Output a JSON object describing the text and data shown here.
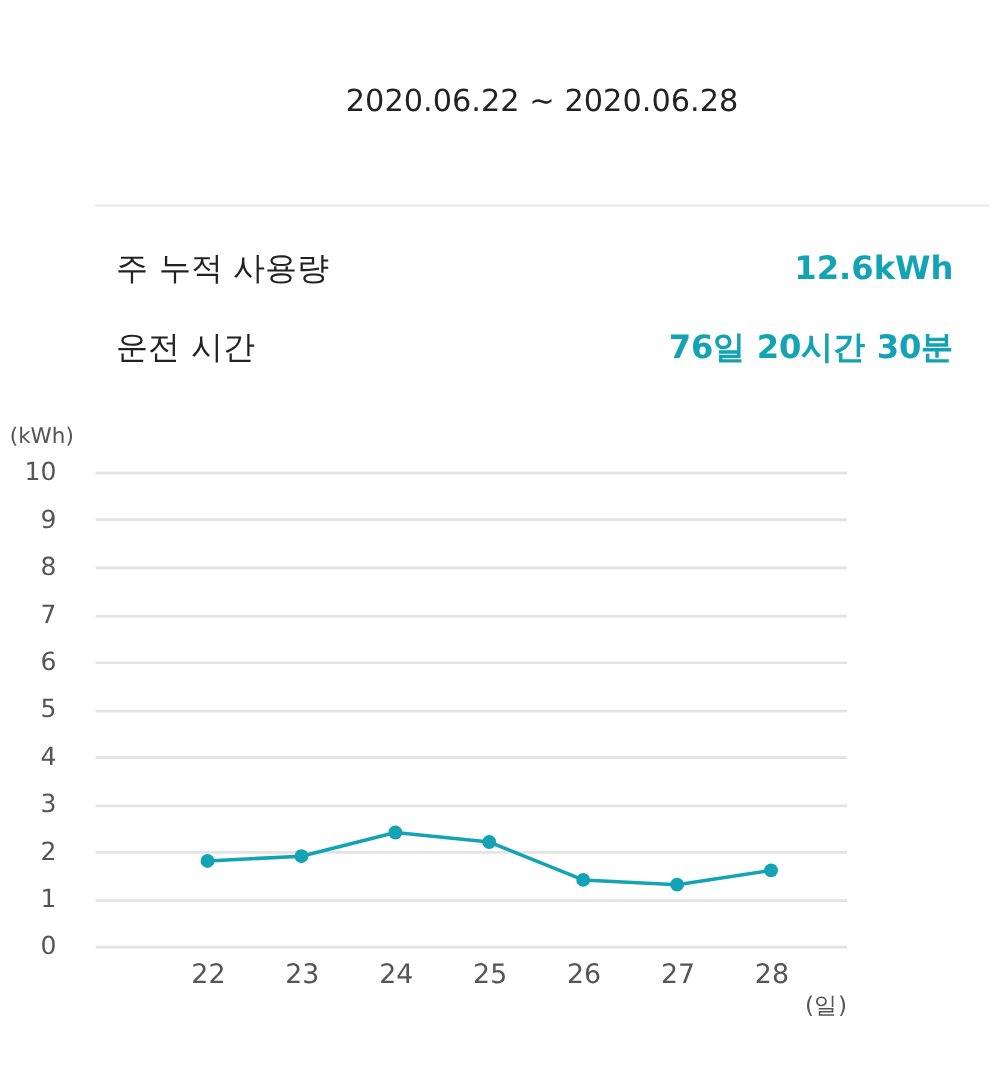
{
  "chart_data": {
    "type": "line",
    "title": "2020.06.22 ~ 2020.06.28",
    "annotations": [
      "주 누적 사용량",
      "12.6kWh",
      "운전 시간",
      "76일 20시간 30분"
    ],
    "categories": [
      "22",
      "23",
      "24",
      "25",
      "26",
      "27",
      "28"
    ],
    "series": [
      {
        "color": "#13a3b5",
        "values": [
          1.8,
          1.9,
          2.4,
          2.2,
          1.4,
          1.3,
          1.6
        ]
      }
    ],
    "xlabel": "(일)",
    "ylabel": "(kWh)",
    "ylim": [
      0,
      10
    ],
    "yticks": [
      0,
      1,
      2,
      3,
      4,
      5,
      6,
      7,
      8,
      9,
      10
    ],
    "grid": "y",
    "marker": "circle",
    "line_style": "solid"
  }
}
